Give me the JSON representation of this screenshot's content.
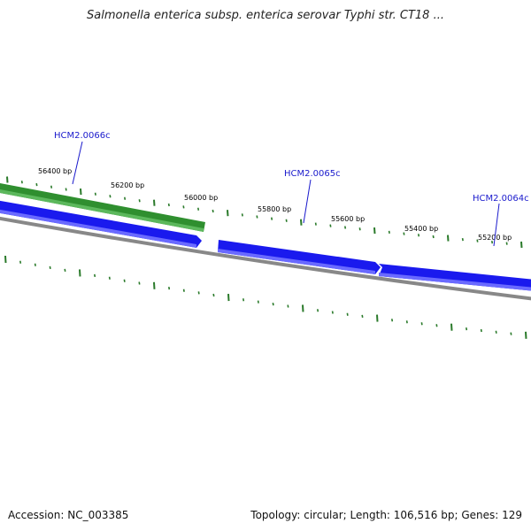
{
  "title": "Salmonella enterica subsp. enterica serovar Typhi str. CT18 ...",
  "footer": {
    "accession": "Accession: NC_003385",
    "summary": "Topology: circular; Length: 106,516 bp; Genes: 129"
  },
  "colors": {
    "forward_strand": "#2f8f2f",
    "reverse_strand": "#1a1aee",
    "backbone": "#888888",
    "tick": "#2a7a2a",
    "gene_label": "#1a1acc"
  },
  "ticks": {
    "labels": [
      {
        "text": "56400 bp"
      },
      {
        "text": "56200 bp"
      },
      {
        "text": "56000 bp"
      },
      {
        "text": "55800 bp"
      },
      {
        "text": "55600 bp"
      },
      {
        "text": "55400 bp"
      },
      {
        "text": "55200 bp"
      }
    ]
  },
  "genes": [
    {
      "name": "HCM2.0066c"
    },
    {
      "name": "HCM2.0065c"
    },
    {
      "name": "HCM2.0064c"
    }
  ]
}
